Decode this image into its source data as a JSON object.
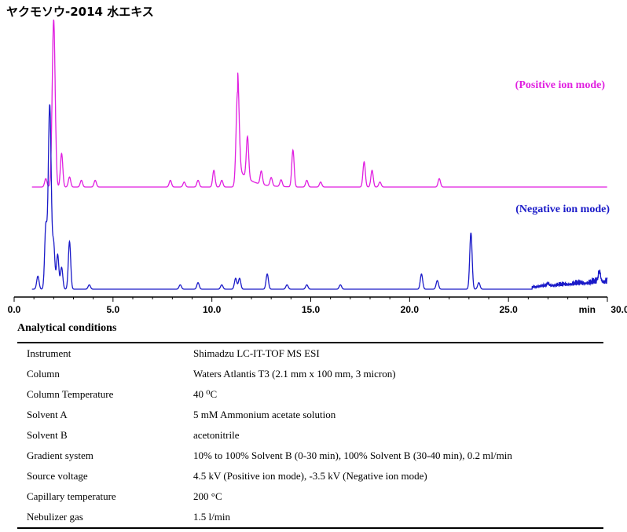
{
  "title": "ヤクモソウ-2014 水エキス",
  "chart_data": {
    "type": "line",
    "xlim": [
      0,
      30
    ],
    "x_ticks": [
      "0.0",
      "5.0",
      "10.0",
      "15.0",
      "20.0",
      "25.0",
      "30.0"
    ],
    "x_unit_label": "min",
    "series": [
      {
        "name": "(Positive ion mode)",
        "color": "#e01fe0",
        "baseline": 0.0,
        "peaks": [
          [
            1.6,
            0.05
          ],
          [
            2.0,
            1.0
          ],
          [
            2.4,
            0.2
          ],
          [
            2.8,
            0.06
          ],
          [
            3.4,
            0.04
          ],
          [
            4.1,
            0.04
          ],
          [
            7.9,
            0.04
          ],
          [
            8.6,
            0.03
          ],
          [
            9.3,
            0.04
          ],
          [
            10.1,
            0.1
          ],
          [
            10.5,
            0.04
          ],
          [
            11.3,
            0.57
          ],
          [
            11.8,
            0.25
          ],
          [
            12.5,
            0.08
          ],
          [
            13.0,
            0.05
          ],
          [
            13.5,
            0.04
          ],
          [
            14.1,
            0.22
          ],
          [
            14.8,
            0.04
          ],
          [
            15.5,
            0.03
          ],
          [
            17.7,
            0.15
          ],
          [
            18.1,
            0.1
          ],
          [
            18.5,
            0.03
          ],
          [
            21.5,
            0.05
          ]
        ]
      },
      {
        "name": "(Negative ion mode)",
        "color": "#1a1ac8",
        "baseline": 0.0,
        "peaks": [
          [
            1.2,
            0.06
          ],
          [
            1.6,
            0.28
          ],
          [
            1.8,
            0.85
          ],
          [
            2.0,
            0.2
          ],
          [
            2.2,
            0.16
          ],
          [
            2.4,
            0.1
          ],
          [
            2.8,
            0.22
          ],
          [
            3.8,
            0.02
          ],
          [
            8.4,
            0.02
          ],
          [
            9.3,
            0.03
          ],
          [
            10.5,
            0.02
          ],
          [
            11.2,
            0.05
          ],
          [
            11.4,
            0.05
          ],
          [
            12.8,
            0.07
          ],
          [
            13.8,
            0.02
          ],
          [
            14.8,
            0.02
          ],
          [
            16.5,
            0.02
          ],
          [
            20.6,
            0.07
          ],
          [
            21.4,
            0.04
          ],
          [
            23.1,
            0.26
          ],
          [
            23.5,
            0.03
          ],
          [
            27.0,
            0.01
          ],
          [
            29.6,
            0.05
          ]
        ]
      }
    ]
  },
  "conditions": {
    "title": "Analytical conditions",
    "rows": [
      {
        "key": "Instrument",
        "value": "Shimadzu LC-IT-TOF MS ESI"
      },
      {
        "key": "Column",
        "value": "Waters Atlantis T3 (2.1 mm x 100 mm, 3 micron)"
      },
      {
        "key": "Column Temperature",
        "value": "40 ⁰C"
      },
      {
        "key": "Solvent A",
        "value": "5 mM Ammonium acetate solution"
      },
      {
        "key": "Solvent B",
        "value": "acetonitrile"
      },
      {
        "key": "Gradient system",
        "value": "10% to 100% Solvent B (0-30 min), 100% Solvent B (30-40 min), 0.2 ml/min"
      },
      {
        "key": "Source voltage",
        "value": "4.5 kV (Positive ion mode), -3.5 kV (Negative ion mode)"
      },
      {
        "key": "Capillary temperature",
        "value": "200 °C"
      },
      {
        "key": "Nebulizer gas",
        "value": "1.5 l/min"
      }
    ]
  }
}
